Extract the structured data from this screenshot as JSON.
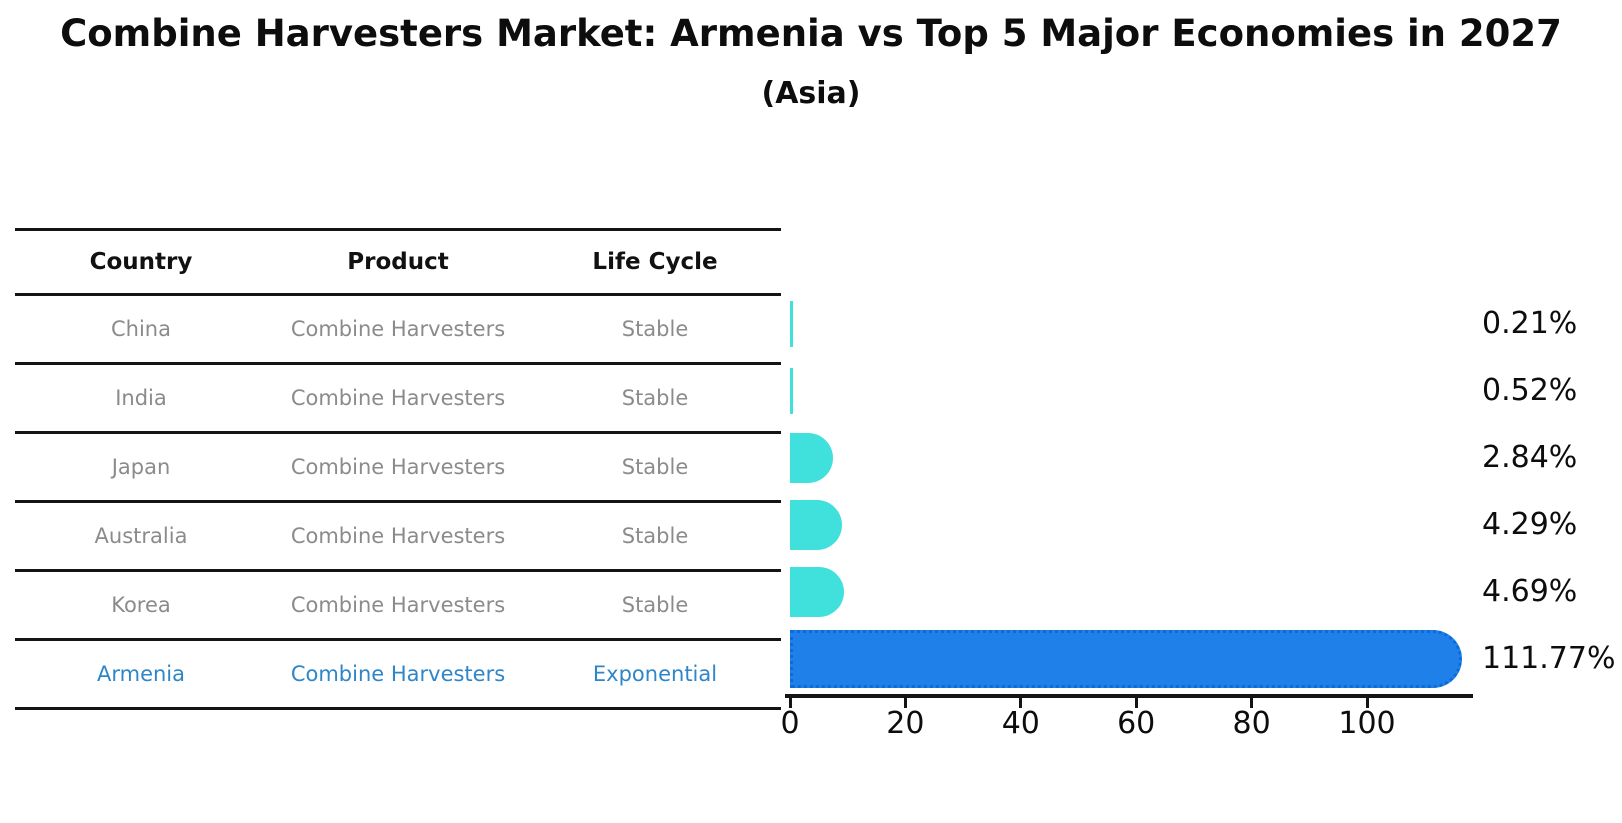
{
  "title": "Combine Harvesters Market: Armenia vs Top 5 Major Economies in 2027",
  "subtitle": "(Asia)",
  "table": {
    "headers": [
      "Country",
      "Product",
      "Life Cycle"
    ],
    "rows": [
      {
        "country": "China",
        "product": "Combine Harvesters",
        "life_cycle": "Stable",
        "highlight": false
      },
      {
        "country": "India",
        "product": "Combine Harvesters",
        "life_cycle": "Stable",
        "highlight": false
      },
      {
        "country": "Japan",
        "product": "Combine Harvesters",
        "life_cycle": "Stable",
        "highlight": false
      },
      {
        "country": "Australia",
        "product": "Combine Harvesters",
        "life_cycle": "Stable",
        "highlight": false
      },
      {
        "country": "Korea",
        "product": "Combine Harvesters",
        "life_cycle": "Stable",
        "highlight": false
      },
      {
        "country": "Armenia",
        "product": "Combine Harvesters",
        "life_cycle": "Exponential",
        "highlight": true
      }
    ]
  },
  "chart_data": {
    "type": "bar",
    "orientation": "horizontal",
    "categories": [
      "China",
      "India",
      "Japan",
      "Australia",
      "Korea",
      "Armenia"
    ],
    "values": [
      0.21,
      0.52,
      2.84,
      4.29,
      4.69,
      111.77
    ],
    "value_labels": [
      "0.21%",
      "0.52%",
      "2.84%",
      "4.29%",
      "4.69%",
      "111.77%"
    ],
    "highlight_index": 5,
    "x_ticks": [
      0,
      20,
      40,
      60,
      80,
      100
    ],
    "xlim": [
      0,
      117
    ],
    "grid": false,
    "legend": false,
    "title": "Combine Harvesters Market: Armenia vs Top 5 Major Economies in 2027",
    "subtitle": "(Asia)"
  },
  "colors": {
    "bar_default": "#40E0DC",
    "bar_highlight": "#1E80E8",
    "bar_highlight_border": "#0D6BD8",
    "highlight_text": "#2e86c9",
    "table_text": "#8b8b8b",
    "axis": "#141414",
    "label_text": "#0d0d0d"
  }
}
